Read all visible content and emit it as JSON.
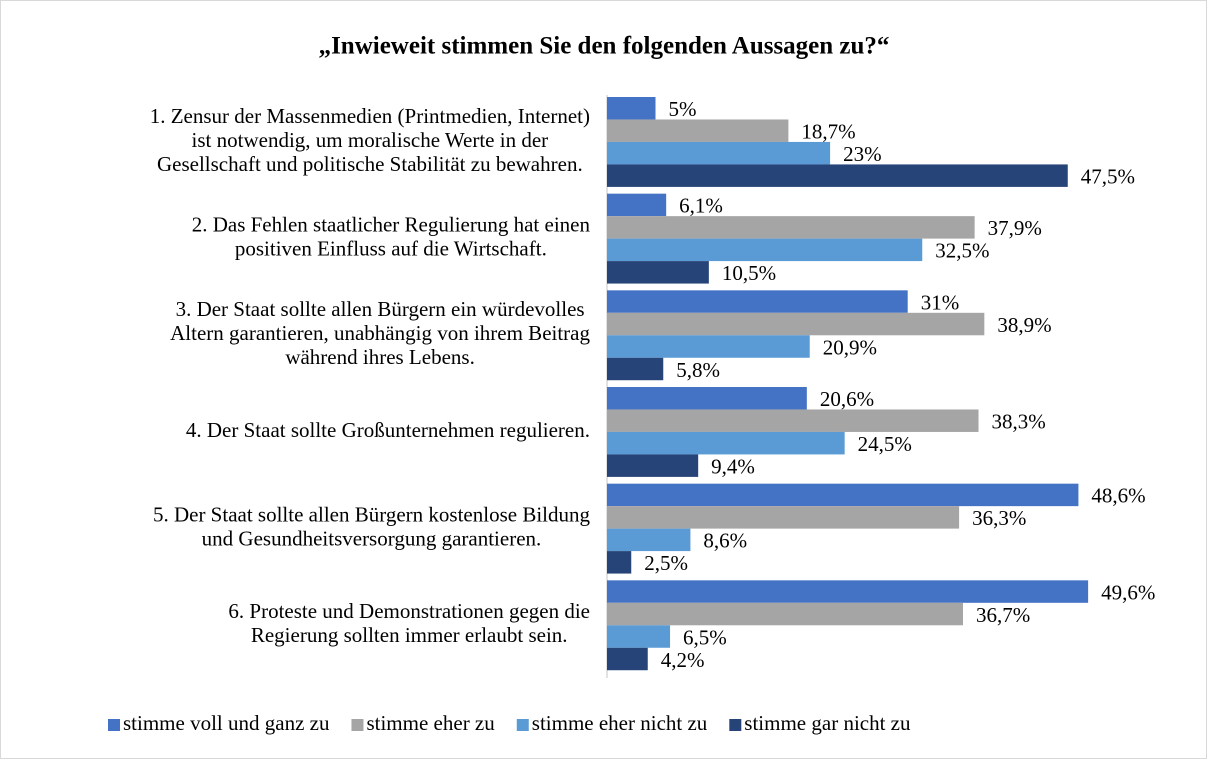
{
  "chart_data": {
    "type": "bar",
    "orientation": "horizontal",
    "title": "„Inwieweit stimmen Sie den folgenden Aussagen zu?“",
    "categories": [
      [
        "1. Zensur der Massenmedien (Printmedien, Internet)",
        "ist notwendig, um moralische Werte in der",
        "Gesellschaft und politische Stabilität zu bewahren."
      ],
      [
        "2. Das Fehlen staatlicher Regulierung hat einen",
        "positiven Einfluss auf die Wirtschaft."
      ],
      [
        "3. Der Staat sollte allen Bürgern ein würdevolles",
        "Altern garantieren, unabhängig von ihrem Beitrag",
        "während ihres Lebens."
      ],
      [
        "4. Der Staat sollte Großunternehmen regulieren."
      ],
      [
        "5. Der Staat sollte allen Bürgern kostenlose Bildung",
        "und Gesundheitsversorgung garantieren."
      ],
      [
        "6. Proteste und Demonstrationen gegen die",
        "Regierung sollten immer erlaubt sein."
      ]
    ],
    "series": [
      {
        "name": "stimme voll und ganz zu",
        "color": "#4472c4",
        "values": [
          5,
          6.1,
          31,
          20.6,
          48.6,
          49.6
        ],
        "value_labels": [
          "5%",
          "6,1%",
          "31%",
          "20,6%",
          "48,6%",
          "49,6%"
        ]
      },
      {
        "name": "stimme eher zu",
        "color": "#a5a5a5",
        "values": [
          18.7,
          37.9,
          38.9,
          38.3,
          36.3,
          36.7
        ],
        "value_labels": [
          "18,7%",
          "37,9%",
          "38,9%",
          "38,3%",
          "36,3%",
          "36,7%"
        ]
      },
      {
        "name": "stimme eher nicht zu",
        "color": "#5b9bd5",
        "values": [
          23,
          32.5,
          20.9,
          24.5,
          8.6,
          6.5
        ],
        "value_labels": [
          "23%",
          "32,5%",
          "20,9%",
          "24,5%",
          "8,6%",
          "6,5%"
        ]
      },
      {
        "name": "stimme gar nicht zu",
        "color": "#264478",
        "values": [
          47.5,
          10.5,
          5.8,
          9.4,
          2.5,
          4.2
        ],
        "value_labels": [
          "47,5%",
          "10,5%",
          "5,8%",
          "9,4%",
          "2,5%",
          "4,2%"
        ]
      }
    ],
    "xlim": [
      0,
      50
    ],
    "legend": "bottom"
  }
}
